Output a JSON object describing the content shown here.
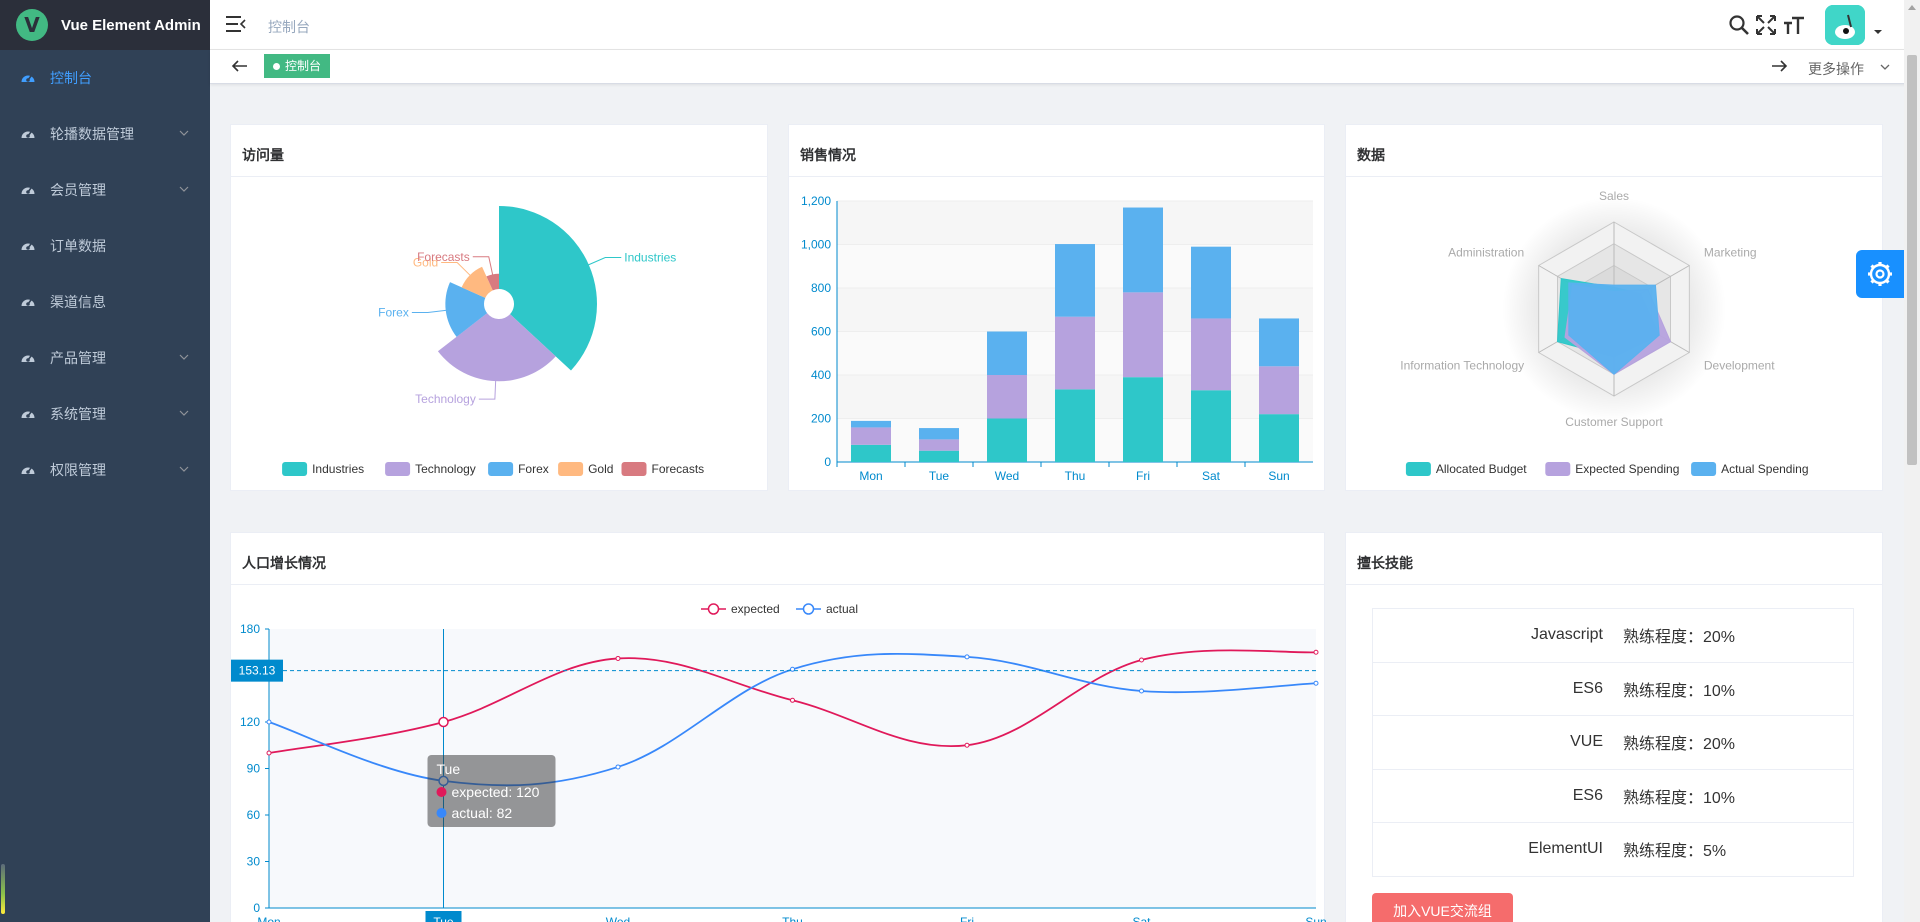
{
  "app": {
    "title": "Vue Element Admin",
    "logo_letter": "V",
    "accent": "#409eff"
  },
  "sidebar": {
    "items": [
      {
        "label": "控制台",
        "icon": "dashboard-icon",
        "active": true,
        "has_children": false
      },
      {
        "label": "轮播数据管理",
        "icon": "dashboard-icon",
        "active": false,
        "has_children": true
      },
      {
        "label": "会员管理",
        "icon": "dashboard-icon",
        "active": false,
        "has_children": true
      },
      {
        "label": "订单数据",
        "icon": "dashboard-icon",
        "active": false,
        "has_children": false
      },
      {
        "label": "渠道信息",
        "icon": "dashboard-icon",
        "active": false,
        "has_children": false
      },
      {
        "label": "产品管理",
        "icon": "dashboard-icon",
        "active": false,
        "has_children": true
      },
      {
        "label": "系统管理",
        "icon": "dashboard-icon",
        "active": false,
        "has_children": true
      },
      {
        "label": "权限管理",
        "icon": "dashboard-icon",
        "active": false,
        "has_children": true
      }
    ]
  },
  "navbar": {
    "breadcrumb": "控制台",
    "tools": [
      "search-icon",
      "fullscreen-icon",
      "font-size-icon"
    ]
  },
  "tags": {
    "active_tag": "控制台",
    "more_label": "更多操作"
  },
  "cards": {
    "visits_title": "访问量",
    "sales_title": "销售情况",
    "data_title": "数据",
    "population_title": "人口增长情况",
    "skills_title": "擅长技能"
  },
  "skills": {
    "rows": [
      {
        "name": "Javascript",
        "level": "熟练程度：20%"
      },
      {
        "name": "ES6",
        "level": "熟练程度：10%"
      },
      {
        "name": "VUE",
        "level": "熟练程度：20%"
      },
      {
        "name": "ES6",
        "level": "熟练程度：10%"
      },
      {
        "name": "ElementUI",
        "level": "熟练程度：5%"
      }
    ],
    "join_button": "加入VUE交流组"
  },
  "chart_data": [
    {
      "type": "pie",
      "subtype": "nightingale-rose",
      "title": "",
      "categories": [
        "Industries",
        "Technology",
        "Forex",
        "Gold",
        "Forecasts"
      ],
      "values": [
        320,
        240,
        149,
        100,
        59
      ],
      "colors": [
        "#2ec7c9",
        "#b6a2de",
        "#5ab1ef",
        "#ffb980",
        "#d87a80"
      ],
      "legend_position": "bottom"
    },
    {
      "type": "bar",
      "subtype": "stacked",
      "title": "",
      "categories": [
        "Mon",
        "Tue",
        "Wed",
        "Thu",
        "Fri",
        "Sat",
        "Sun"
      ],
      "series": [
        {
          "values": [
            79,
            52,
            200,
            334,
            390,
            330,
            220
          ],
          "color": "#2ec7c9"
        },
        {
          "values": [
            80,
            52,
            200,
            334,
            390,
            330,
            220
          ],
          "color": "#b6a2de"
        },
        {
          "values": [
            30,
            52,
            200,
            334,
            390,
            330,
            220
          ],
          "color": "#5ab1ef"
        }
      ],
      "y_ticks": [
        "0",
        "200",
        "400",
        "600",
        "800",
        "1,000",
        "1,200"
      ],
      "ylim": [
        0,
        1200
      ],
      "grid": true
    },
    {
      "type": "radar",
      "title": "",
      "indicators": [
        "Sales",
        "Marketing",
        "Development",
        "Customer Support",
        "Information Technology",
        "Administration"
      ],
      "max": 20000,
      "series": [
        {
          "name": "Allocated Budget",
          "values": [
            5000,
            7000,
            12000,
            11000,
            15000,
            14000
          ],
          "color": "#2ec7c9"
        },
        {
          "name": "Expected Spending",
          "values": [
            4000,
            9000,
            15000,
            15000,
            13000,
            11000
          ],
          "color": "#b6a2de"
        },
        {
          "name": "Actual Spending",
          "values": [
            5500,
            11000,
            12000,
            15000,
            12000,
            12000
          ],
          "color": "#5ab1ef"
        }
      ],
      "legend_position": "bottom"
    },
    {
      "type": "line",
      "title": "",
      "categories": [
        "Mon",
        "Tue",
        "Wed",
        "Thu",
        "Fri",
        "Sat",
        "Sun"
      ],
      "series": [
        {
          "name": "expected",
          "values": [
            100,
            120,
            161,
            134,
            105,
            160,
            165
          ],
          "color": "#e0195a"
        },
        {
          "name": "actual",
          "values": [
            120,
            82,
            91,
            154,
            162,
            140,
            145
          ],
          "color": "#3888fa"
        }
      ],
      "ylim": [
        0,
        180
      ],
      "y_ticks": [
        "0",
        "30",
        "60",
        "90",
        "120",
        "180"
      ],
      "pointer_value": "153.13",
      "tooltip": {
        "title": "Tue",
        "lines": [
          "expected: 120",
          "actual: 82"
        ]
      },
      "legend_position": "top"
    }
  ]
}
